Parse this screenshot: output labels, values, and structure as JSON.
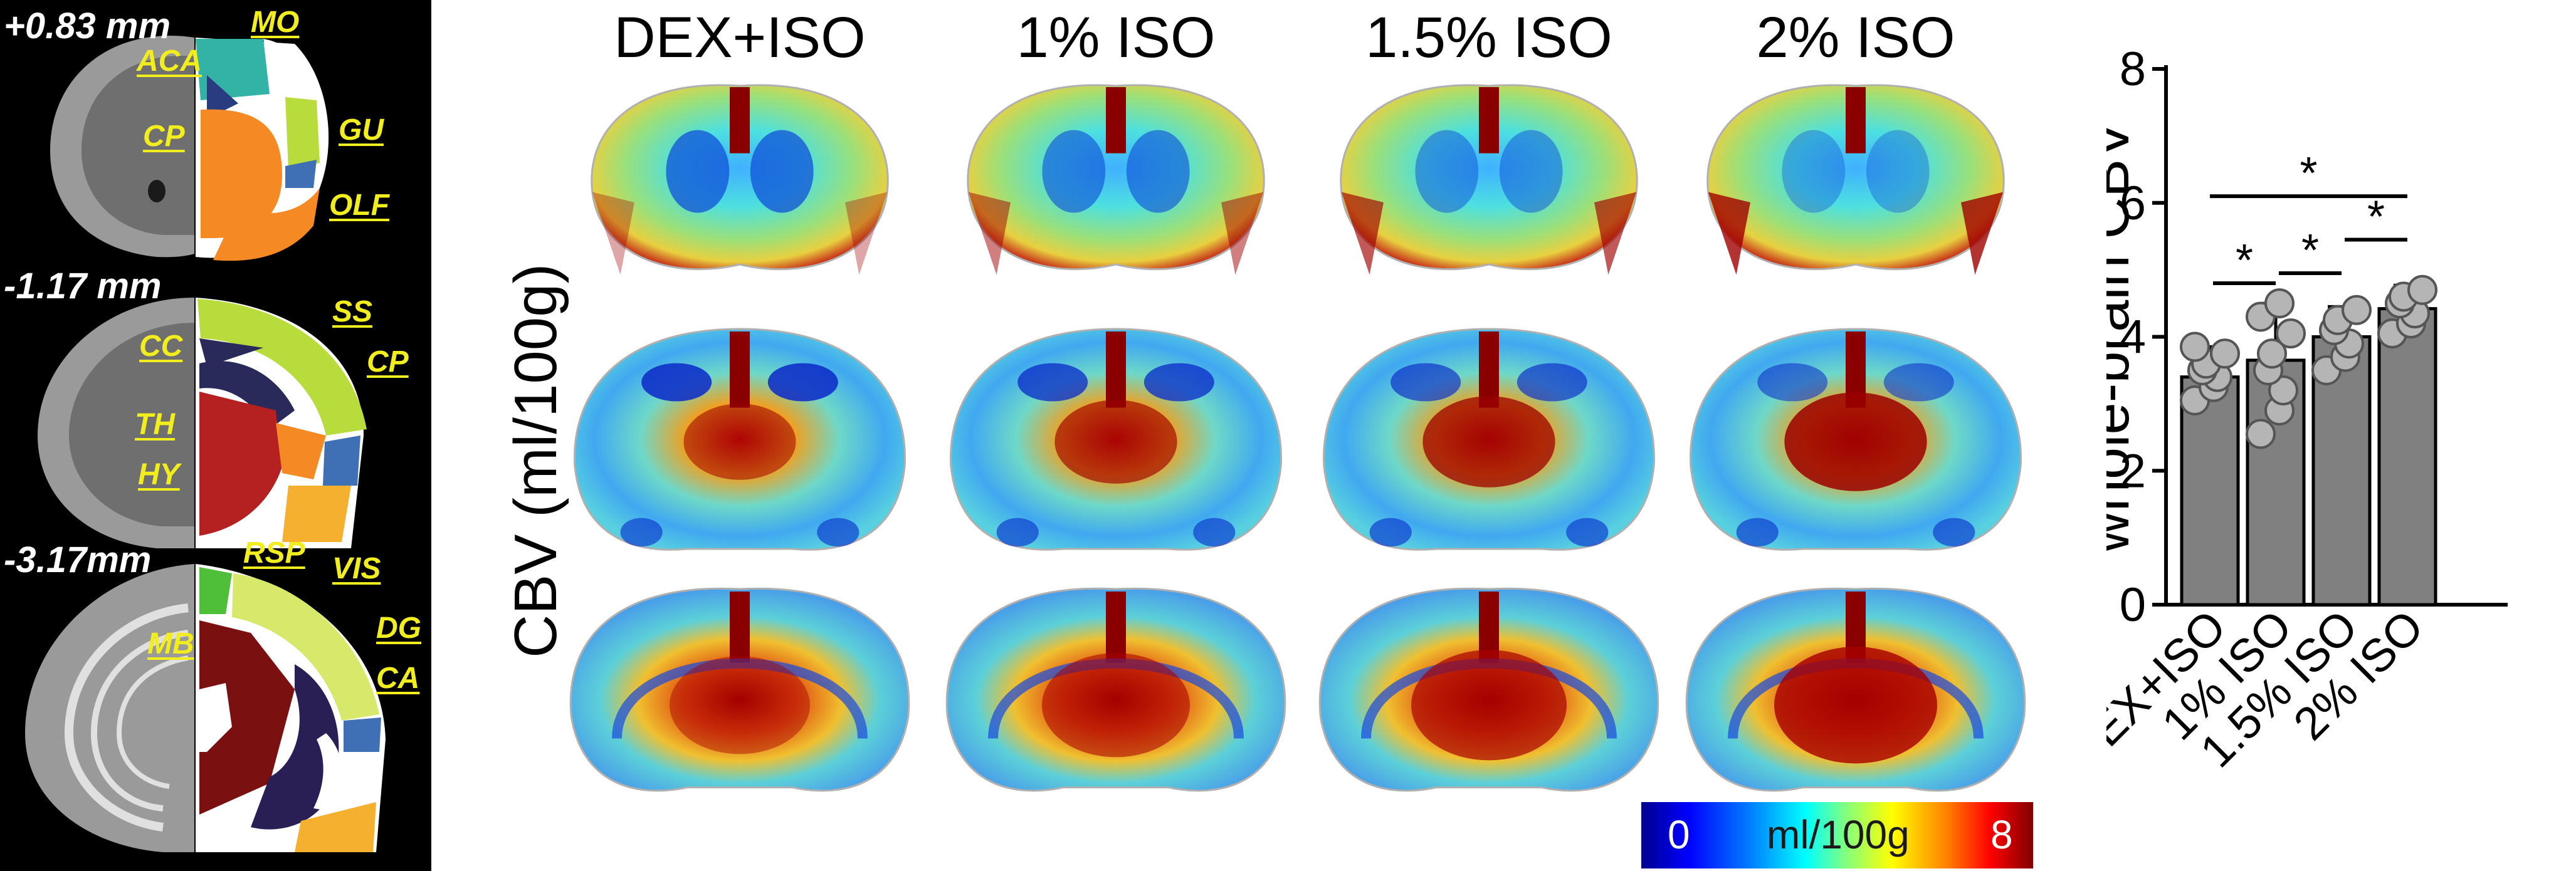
{
  "atlas": {
    "sections": [
      {
        "coord": "+0.83 mm",
        "labels": [
          "MO",
          "ACA",
          "CP",
          "GU",
          "OLF"
        ]
      },
      {
        "coord": "-1.17 mm",
        "labels": [
          "SS",
          "CC",
          "CP",
          "TH",
          "HY"
        ]
      },
      {
        "coord": "-3.17mm",
        "labels": [
          "RSP",
          "VIS",
          "MB",
          "DG",
          "CA"
        ]
      }
    ]
  },
  "maps": {
    "ylabel": "CBV (ml/100g)",
    "columns": [
      "DEX+ISO",
      "1% ISO",
      "1.5% ISO",
      "2% ISO"
    ],
    "colorbar": {
      "min": "0",
      "max": "8",
      "unit": "ml/100g",
      "colors": [
        "#00008f",
        "#0000ff",
        "#0080ff",
        "#00ffff",
        "#80ff80",
        "#ffff00",
        "#ff8000",
        "#ff0000",
        "#800000"
      ]
    }
  },
  "chart_data": {
    "type": "bar",
    "categories": [
      "DEX+ISO",
      "1% ISO",
      "1.5% ISO",
      "2% ISO"
    ],
    "values": [
      3.4,
      3.65,
      4.0,
      4.42
    ],
    "error": [
      0.45,
      0.85,
      0.45,
      0.35
    ],
    "ylabel": "whole-brain CBV",
    "xlabel": "",
    "ylim": [
      0,
      8
    ],
    "yticks": [
      "0",
      "2",
      "4",
      "6",
      "8"
    ],
    "points": [
      [
        3.05,
        3.25,
        3.4,
        3.5,
        3.6,
        3.75,
        3.85
      ],
      [
        2.55,
        2.9,
        3.2,
        3.5,
        3.75,
        4.05,
        4.3,
        4.5
      ],
      [
        3.5,
        3.7,
        3.9,
        4.1,
        4.25,
        4.4
      ],
      [
        4.05,
        4.2,
        4.35,
        4.5,
        4.6,
        4.7
      ]
    ],
    "significance": [
      {
        "from": 0,
        "to": 1,
        "y": 4.8,
        "label": "*"
      },
      {
        "from": 1,
        "to": 2,
        "y": 4.95,
        "label": "*"
      },
      {
        "from": 2,
        "to": 3,
        "y": 5.45,
        "label": "*"
      },
      {
        "from": 0,
        "to": 3,
        "y": 6.1,
        "label": "*"
      }
    ],
    "bar_color": "#808080",
    "point_color": "#b5b5b5"
  }
}
